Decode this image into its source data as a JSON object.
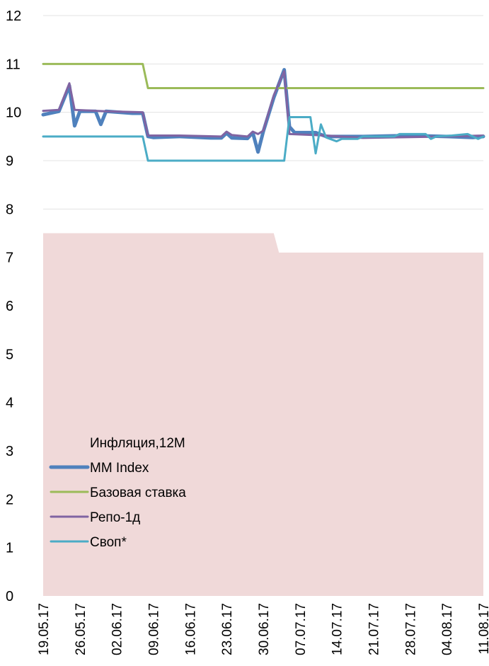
{
  "chart_data": {
    "type": "line",
    "title": "",
    "xlabel": "",
    "ylabel": "",
    "ylim": [
      0,
      12
    ],
    "yticks": [
      "0",
      "1",
      "2",
      "3",
      "4",
      "5",
      "6",
      "7",
      "8",
      "9",
      "10",
      "11",
      "12"
    ],
    "grid": "horizontal",
    "legend_position": "bottom-left",
    "x_tick_labels": [
      "19.05.17",
      "26.05.17",
      "02.06.17",
      "09.06.17",
      "16.06.17",
      "23.06.17",
      "30.06.17",
      "07.07.17",
      "14.07.17",
      "21.07.17",
      "28.07.17",
      "04.08.17",
      "11.08.17"
    ],
    "x_range": [
      "19.05.17",
      "11.08.17"
    ],
    "series": [
      {
        "name": "Инфляция,12М",
        "kind": "area",
        "color": "#f0d9d9",
        "points": [
          [
            "19.05.17",
            7.5
          ],
          [
            "02.07.17",
            7.5
          ],
          [
            "03.07.17",
            7.1
          ],
          [
            "11.08.17",
            7.1
          ]
        ]
      },
      {
        "name": "MM Index",
        "kind": "line",
        "color": "#4f81bd",
        "width": 5,
        "points": [
          [
            "19.05.17",
            9.95
          ],
          [
            "22.05.17",
            10.02
          ],
          [
            "24.05.17",
            10.55
          ],
          [
            "25.05.17",
            9.72
          ],
          [
            "26.05.17",
            10.02
          ],
          [
            "29.05.17",
            10.02
          ],
          [
            "30.05.17",
            9.75
          ],
          [
            "31.05.17",
            10.02
          ],
          [
            "05.06.17",
            9.98
          ],
          [
            "07.06.17",
            9.98
          ],
          [
            "08.06.17",
            9.5
          ],
          [
            "09.06.17",
            9.48
          ],
          [
            "14.06.17",
            9.5
          ],
          [
            "20.06.17",
            9.47
          ],
          [
            "22.06.17",
            9.47
          ],
          [
            "23.06.17",
            9.57
          ],
          [
            "24.06.17",
            9.47
          ],
          [
            "27.06.17",
            9.46
          ],
          [
            "28.06.17",
            9.58
          ],
          [
            "29.06.17",
            9.18
          ],
          [
            "30.06.17",
            9.6
          ],
          [
            "02.07.17",
            10.3
          ],
          [
            "04.07.17",
            10.88
          ],
          [
            "05.07.17",
            9.7
          ],
          [
            "06.07.17",
            9.58
          ],
          [
            "10.07.17",
            9.58
          ],
          [
            "12.07.17",
            9.5
          ],
          [
            "19.07.17",
            9.5
          ],
          [
            "28.07.17",
            9.52
          ],
          [
            "04.08.17",
            9.5
          ],
          [
            "09.08.17",
            9.48
          ],
          [
            "11.08.17",
            9.5
          ]
        ]
      },
      {
        "name": "Базовая ставка",
        "kind": "line",
        "color": "#9bbb59",
        "width": 3,
        "points": [
          [
            "19.05.17",
            11.0
          ],
          [
            "07.06.17",
            11.0
          ],
          [
            "08.06.17",
            10.5
          ],
          [
            "11.08.17",
            10.5
          ]
        ]
      },
      {
        "name": "Репо-1д",
        "kind": "line",
        "color": "#8064a2",
        "width": 3,
        "points": [
          [
            "19.05.17",
            10.03
          ],
          [
            "22.05.17",
            10.05
          ],
          [
            "24.05.17",
            10.6
          ],
          [
            "25.05.17",
            10.05
          ],
          [
            "31.05.17",
            10.02
          ],
          [
            "07.06.17",
            10.0
          ],
          [
            "08.06.17",
            9.52
          ],
          [
            "14.06.17",
            9.52
          ],
          [
            "22.06.17",
            9.5
          ],
          [
            "23.06.17",
            9.6
          ],
          [
            "24.06.17",
            9.53
          ],
          [
            "27.06.17",
            9.5
          ],
          [
            "28.06.17",
            9.6
          ],
          [
            "29.06.17",
            9.55
          ],
          [
            "30.06.17",
            9.62
          ],
          [
            "02.07.17",
            10.35
          ],
          [
            "04.07.17",
            10.85
          ],
          [
            "05.07.17",
            9.55
          ],
          [
            "12.07.17",
            9.52
          ],
          [
            "19.07.17",
            9.47
          ],
          [
            "04.08.17",
            9.5
          ],
          [
            "11.08.17",
            9.52
          ]
        ]
      },
      {
        "name": "Своп*",
        "kind": "line",
        "color": "#4bacc6",
        "width": 3,
        "points": [
          [
            "19.05.17",
            9.5
          ],
          [
            "07.06.17",
            9.5
          ],
          [
            "08.06.17",
            9.0
          ],
          [
            "04.07.17",
            9.0
          ],
          [
            "05.07.17",
            9.9
          ],
          [
            "09.07.17",
            9.9
          ],
          [
            "10.07.17",
            9.15
          ],
          [
            "11.07.17",
            9.75
          ],
          [
            "12.07.17",
            9.48
          ],
          [
            "14.07.17",
            9.4
          ],
          [
            "15.07.17",
            9.45
          ],
          [
            "18.07.17",
            9.45
          ],
          [
            "19.07.17",
            9.5
          ],
          [
            "25.07.17",
            9.5
          ],
          [
            "26.07.17",
            9.55
          ],
          [
            "31.07.17",
            9.55
          ],
          [
            "01.08.17",
            9.45
          ],
          [
            "02.08.17",
            9.5
          ],
          [
            "05.08.17",
            9.52
          ],
          [
            "08.08.17",
            9.55
          ],
          [
            "10.08.17",
            9.45
          ],
          [
            "11.08.17",
            9.5
          ]
        ]
      }
    ]
  }
}
